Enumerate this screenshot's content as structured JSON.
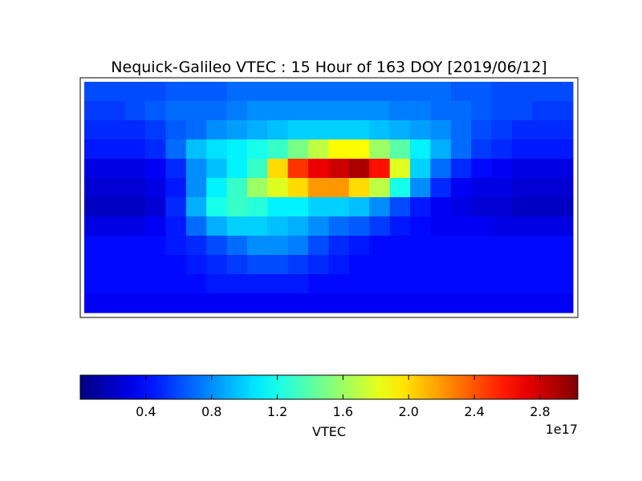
{
  "chart_data": {
    "type": "heatmap",
    "title": "Nequick-Galileo VTEC : 15 Hour of 163 DOY [2019/06/12]",
    "colorbar_label": "VTEC",
    "colorbar_offset": "1e17",
    "colormap": "jet",
    "clim": [
      0.0,
      3.03
    ],
    "cticks": [
      0.4,
      0.8,
      1.2,
      1.6,
      {
        "value": 2,
        "label": "2.0"
      },
      2.4,
      2.8
    ],
    "values": [
      [
        0.6,
        0.6,
        0.6,
        0.6,
        0.65,
        0.65,
        0.65,
        0.7,
        0.7,
        0.7,
        0.7,
        0.7,
        0.7,
        0.7,
        0.7,
        0.7,
        0.7,
        0.7,
        0.65,
        0.65,
        0.6,
        0.6,
        0.6,
        0.6
      ],
      [
        0.55,
        0.55,
        0.6,
        0.65,
        0.7,
        0.7,
        0.7,
        0.75,
        0.8,
        0.8,
        0.8,
        0.8,
        0.8,
        0.8,
        0.8,
        0.75,
        0.75,
        0.7,
        0.7,
        0.65,
        0.6,
        0.6,
        0.55,
        0.55
      ],
      [
        0.5,
        0.5,
        0.5,
        0.55,
        0.65,
        0.7,
        0.8,
        0.85,
        0.9,
        0.95,
        1.0,
        1.0,
        1.0,
        1.0,
        0.95,
        0.9,
        0.85,
        0.8,
        0.7,
        0.6,
        0.55,
        0.5,
        0.5,
        0.5
      ],
      [
        0.45,
        0.45,
        0.45,
        0.5,
        0.7,
        0.95,
        1.05,
        1.1,
        1.2,
        1.3,
        1.5,
        1.7,
        1.9,
        1.9,
        1.6,
        1.4,
        1.1,
        0.9,
        0.7,
        0.55,
        0.5,
        0.45,
        0.45,
        0.45
      ],
      [
        0.3,
        0.3,
        0.3,
        0.35,
        0.5,
        0.8,
        0.95,
        1.1,
        1.3,
        2.0,
        2.5,
        2.7,
        2.8,
        2.9,
        2.6,
        1.8,
        1.0,
        0.7,
        0.5,
        0.4,
        0.35,
        0.3,
        0.3,
        0.3
      ],
      [
        0.25,
        0.25,
        0.25,
        0.3,
        0.45,
        0.8,
        1.1,
        1.3,
        1.6,
        1.8,
        2.0,
        2.2,
        2.2,
        2.0,
        1.7,
        1.2,
        0.8,
        0.5,
        0.35,
        0.3,
        0.3,
        0.25,
        0.25,
        0.25
      ],
      [
        0.2,
        0.2,
        0.2,
        0.25,
        0.5,
        0.9,
        1.2,
        1.3,
        1.25,
        1.1,
        1.1,
        1.0,
        1.0,
        0.95,
        0.8,
        0.6,
        0.45,
        0.35,
        0.3,
        0.25,
        0.25,
        0.2,
        0.2,
        0.2
      ],
      [
        0.3,
        0.3,
        0.3,
        0.35,
        0.45,
        0.7,
        0.9,
        1.0,
        1.0,
        0.95,
        0.9,
        0.8,
        0.7,
        0.65,
        0.55,
        0.45,
        0.4,
        0.35,
        0.35,
        0.35,
        0.3,
        0.3,
        0.3,
        0.3
      ],
      [
        0.4,
        0.4,
        0.4,
        0.4,
        0.45,
        0.5,
        0.6,
        0.7,
        0.8,
        0.8,
        0.75,
        0.6,
        0.5,
        0.45,
        0.4,
        0.4,
        0.4,
        0.4,
        0.4,
        0.4,
        0.4,
        0.4,
        0.4,
        0.4
      ],
      [
        0.4,
        0.4,
        0.4,
        0.4,
        0.4,
        0.45,
        0.5,
        0.55,
        0.6,
        0.6,
        0.55,
        0.5,
        0.45,
        0.4,
        0.4,
        0.4,
        0.4,
        0.4,
        0.4,
        0.4,
        0.4,
        0.4,
        0.4,
        0.4
      ],
      [
        0.4,
        0.4,
        0.4,
        0.4,
        0.4,
        0.4,
        0.45,
        0.45,
        0.45,
        0.45,
        0.45,
        0.4,
        0.4,
        0.4,
        0.4,
        0.4,
        0.4,
        0.4,
        0.4,
        0.4,
        0.4,
        0.4,
        0.4,
        0.4
      ],
      [
        0.35,
        0.35,
        0.35,
        0.35,
        0.35,
        0.35,
        0.35,
        0.35,
        0.35,
        0.35,
        0.35,
        0.35,
        0.35,
        0.35,
        0.35,
        0.35,
        0.35,
        0.35,
        0.35,
        0.35,
        0.35,
        0.35,
        0.35,
        0.35
      ]
    ]
  }
}
